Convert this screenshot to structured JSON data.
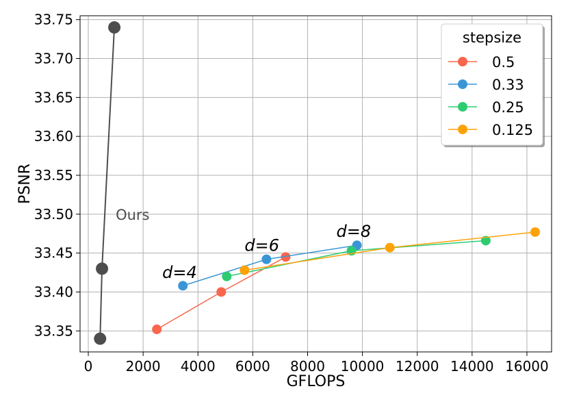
{
  "chart_data": {
    "type": "line",
    "xlabel": "GFLOPS",
    "ylabel": "PSNR",
    "xlim": [
      -300,
      16900
    ],
    "ylim": [
      33.323,
      33.755
    ],
    "x_ticks": [
      0,
      2000,
      4000,
      6000,
      8000,
      10000,
      12000,
      14000,
      16000
    ],
    "y_ticks": [
      33.35,
      33.4,
      33.45,
      33.5,
      33.55,
      33.6,
      33.65,
      33.7,
      33.75
    ],
    "x_tick_labels": [
      "0",
      "2000",
      "4000",
      "6000",
      "8000",
      "10000",
      "12000",
      "14000",
      "16000"
    ],
    "y_tick_labels": [
      "33.35",
      "33.40",
      "33.45",
      "33.50",
      "33.55",
      "33.60",
      "33.65",
      "33.70",
      "33.75"
    ],
    "grid": true,
    "legend": {
      "title": "stepsize",
      "position": "top-right"
    },
    "series": [
      {
        "name": "Ours",
        "color": "#4d4d4d",
        "in_legend": false,
        "marker_size": "large",
        "x": [
          430,
          500,
          950
        ],
        "y": [
          33.34,
          33.43,
          33.74
        ]
      },
      {
        "name": "0.5",
        "color": "#f8664d",
        "in_legend": true,
        "x": [
          2500,
          4850,
          7200
        ],
        "y": [
          33.352,
          33.4,
          33.445
        ]
      },
      {
        "name": "0.33",
        "color": "#3a95d6",
        "in_legend": true,
        "x": [
          3450,
          6500,
          9800
        ],
        "y": [
          33.408,
          33.442,
          33.46
        ]
      },
      {
        "name": "0.25",
        "color": "#2ecc71",
        "in_legend": true,
        "x": [
          5050,
          9600,
          14500
        ],
        "y": [
          33.42,
          33.453,
          33.466
        ]
      },
      {
        "name": "0.125",
        "color": "#ffa20a",
        "in_legend": true,
        "x": [
          5700,
          11000,
          16300
        ],
        "y": [
          33.428,
          33.457,
          33.477
        ]
      }
    ],
    "annotations": [
      {
        "text": "Ours",
        "x": 1000,
        "y": 33.5,
        "style": "gray"
      },
      {
        "text": "d=4",
        "x": 2700,
        "y": 33.425,
        "style": "italic"
      },
      {
        "text": "d=6",
        "x": 5700,
        "y": 33.46,
        "style": "italic"
      },
      {
        "text": "d=8",
        "x": 9050,
        "y": 33.478,
        "style": "italic"
      }
    ]
  }
}
